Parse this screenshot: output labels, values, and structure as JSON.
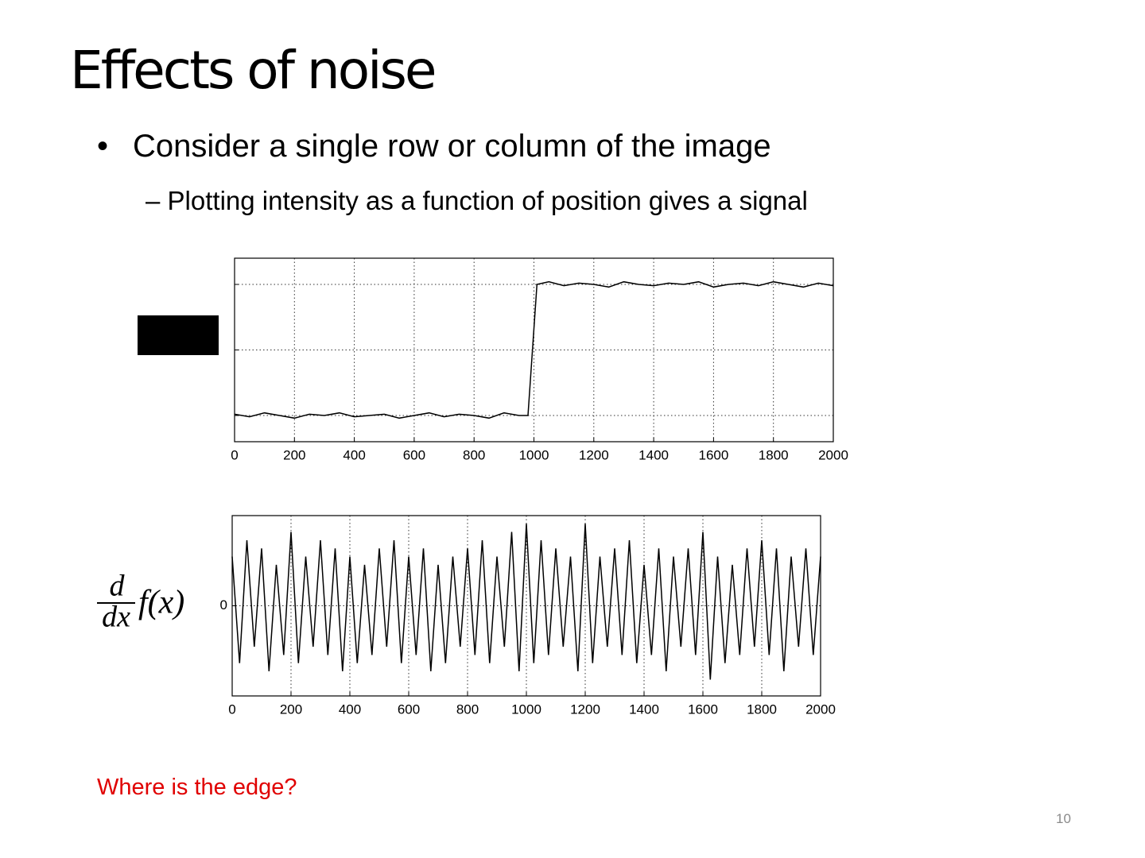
{
  "slide": {
    "title": "Effects of noise",
    "bullet": "Consider a single row or column of the image",
    "sub_bullet": "Plotting intensity as a function of position gives a signal",
    "formula": {
      "numerator": "d",
      "denominator": "dx",
      "function": "f(x)"
    },
    "caption": "Where is the edge?",
    "page_number": "10"
  },
  "chart_data": [
    {
      "type": "line",
      "color": "#000000",
      "grid": true,
      "show_ytick_labels": false,
      "xlim": [
        0,
        2000
      ],
      "xticks": [
        0,
        200,
        400,
        600,
        800,
        1000,
        1200,
        1400,
        1600,
        1800,
        2000
      ],
      "ylim": [
        0,
        1.4
      ],
      "yticks": [
        0.2,
        0.7,
        1.2
      ],
      "x": [
        0,
        50,
        100,
        150,
        200,
        250,
        300,
        350,
        400,
        450,
        500,
        550,
        600,
        650,
        700,
        750,
        800,
        850,
        900,
        950,
        980,
        1010,
        1050,
        1100,
        1150,
        1200,
        1250,
        1300,
        1350,
        1400,
        1450,
        1500,
        1550,
        1600,
        1650,
        1700,
        1750,
        1800,
        1850,
        1900,
        1950,
        2000
      ],
      "values": [
        0.21,
        0.19,
        0.22,
        0.2,
        0.18,
        0.21,
        0.2,
        0.22,
        0.19,
        0.2,
        0.21,
        0.18,
        0.2,
        0.22,
        0.19,
        0.21,
        0.2,
        0.18,
        0.22,
        0.2,
        0.2,
        1.2,
        1.22,
        1.19,
        1.21,
        1.2,
        1.18,
        1.22,
        1.2,
        1.19,
        1.21,
        1.2,
        1.22,
        1.18,
        1.2,
        1.21,
        1.19,
        1.22,
        1.2,
        1.18,
        1.21,
        1.19
      ]
    },
    {
      "type": "line",
      "color": "#000000",
      "grid": true,
      "show_ytick_labels": true,
      "xlim": [
        0,
        2000
      ],
      "xticks": [
        0,
        200,
        400,
        600,
        800,
        1000,
        1200,
        1400,
        1600,
        1800,
        2000
      ],
      "ylim": [
        -1.1,
        1.1
      ],
      "yticks": [
        0
      ],
      "x": [
        0,
        25,
        50,
        75,
        100,
        125,
        150,
        175,
        200,
        225,
        250,
        275,
        300,
        325,
        350,
        375,
        400,
        425,
        450,
        475,
        500,
        525,
        550,
        575,
        600,
        625,
        650,
        675,
        700,
        725,
        750,
        775,
        800,
        825,
        850,
        875,
        900,
        925,
        950,
        975,
        1000,
        1025,
        1050,
        1075,
        1100,
        1125,
        1150,
        1175,
        1200,
        1225,
        1250,
        1275,
        1300,
        1325,
        1350,
        1375,
        1400,
        1425,
        1450,
        1475,
        1500,
        1525,
        1550,
        1575,
        1600,
        1625,
        1650,
        1675,
        1700,
        1725,
        1750,
        1775,
        1800,
        1825,
        1850,
        1875,
        1900,
        1925,
        1950,
        1975,
        2000
      ],
      "values": [
        0.6,
        -0.7,
        0.8,
        -0.5,
        0.7,
        -0.8,
        0.5,
        -0.6,
        0.9,
        -0.7,
        0.6,
        -0.5,
        0.8,
        -0.6,
        0.7,
        -0.8,
        0.6,
        -0.7,
        0.5,
        -0.6,
        0.7,
        -0.5,
        0.8,
        -0.7,
        0.6,
        -0.6,
        0.7,
        -0.8,
        0.5,
        -0.7,
        0.6,
        -0.5,
        0.7,
        -0.6,
        0.8,
        -0.7,
        0.6,
        -0.5,
        0.9,
        -0.8,
        1.0,
        -0.7,
        0.8,
        -0.6,
        0.7,
        -0.5,
        0.6,
        -0.8,
        1.0,
        -0.7,
        0.6,
        -0.5,
        0.7,
        -0.6,
        0.8,
        -0.7,
        0.5,
        -0.6,
        0.7,
        -0.8,
        0.6,
        -0.5,
        0.7,
        -0.6,
        0.9,
        -0.9,
        0.6,
        -0.7,
        0.5,
        -0.6,
        0.7,
        -0.5,
        0.8,
        -0.6,
        0.7,
        -0.8,
        0.6,
        -0.5,
        0.7,
        -0.6,
        0.6
      ]
    }
  ]
}
